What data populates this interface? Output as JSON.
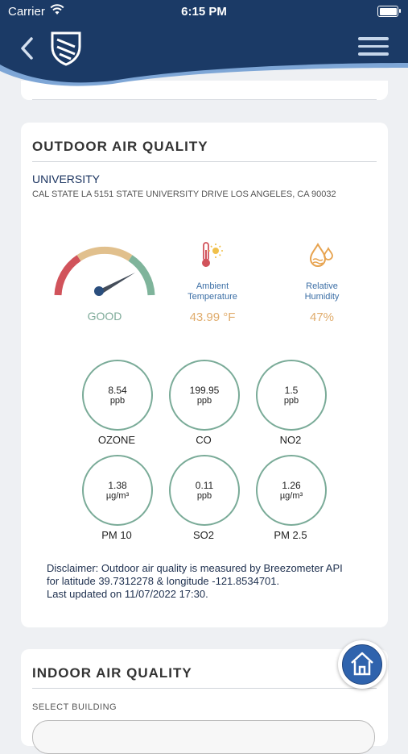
{
  "status_bar": {
    "carrier": "Carrier",
    "time": "6:15 PM"
  },
  "header": {
    "back_icon": "chevron-left-icon",
    "logo_icon": "shield-logo-icon",
    "menu_icon": "hamburger-menu-icon"
  },
  "outdoor": {
    "title": "OUTDOOR AIR QUALITY",
    "location_name": "UNIVERSITY",
    "address": "CAL STATE LA 5151 STATE UNIVERSITY DRIVE LOS ANGELES, CA 90032",
    "aqi_status": "GOOD",
    "temperature": {
      "label": "Ambient\nTemperature",
      "value": "43.99 °F"
    },
    "humidity": {
      "label": "Relative\nHumidity",
      "value": "47%"
    },
    "pollutants": [
      {
        "value": "8.54",
        "unit": "ppb",
        "name": "OZONE"
      },
      {
        "value": "199.95",
        "unit": "ppb",
        "name": "CO"
      },
      {
        "value": "1.5",
        "unit": "ppb",
        "name": "NO2"
      },
      {
        "value": "1.38",
        "unit": "µg/m³",
        "name": "PM 10"
      },
      {
        "value": "0.11",
        "unit": "ppb",
        "name": "SO2"
      },
      {
        "value": "1.26",
        "unit": "µg/m³",
        "name": "PM 2.5"
      }
    ],
    "disclaimer": [
      "Disclaimer:  Outdoor air quality is measured by Breezometer API",
      "for latitude 39.7312278 & longitude -121.8534701.",
      "Last updated on 11/07/2022 17:30."
    ]
  },
  "indoor": {
    "title": "INDOOR AIR QUALITY",
    "select_label": "SELECT BUILDING"
  },
  "home_button": {
    "icon": "home-icon"
  },
  "colors": {
    "header_bg": "#1b3a66",
    "accent_blue": "#2f63ad",
    "good_green": "#7fab9a",
    "warm_orange": "#e0ac6c"
  }
}
